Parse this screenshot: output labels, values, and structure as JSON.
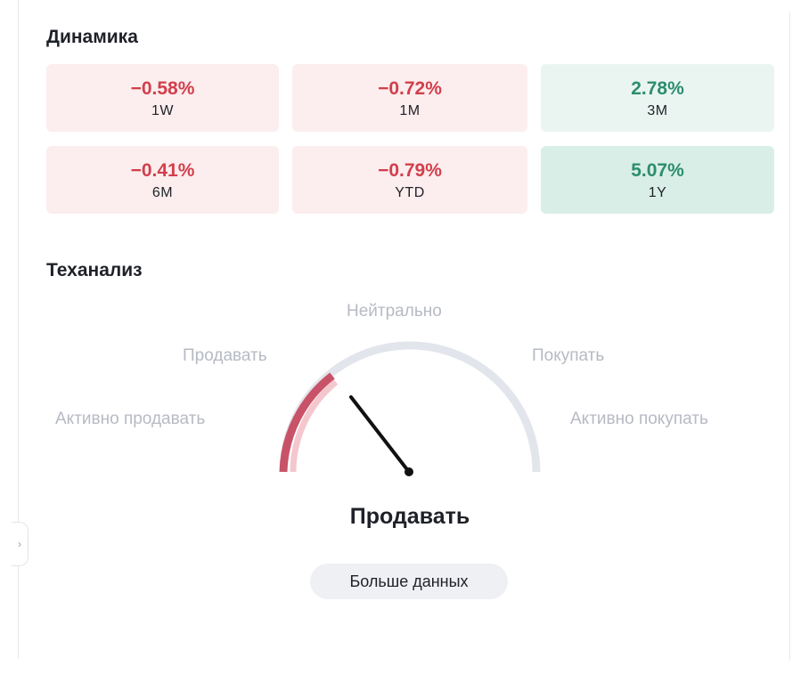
{
  "dynamics": {
    "title": "Динамика",
    "cells": [
      {
        "value": "−0.58%",
        "period": "1W"
      },
      {
        "value": "−0.72%",
        "period": "1M"
      },
      {
        "value": "2.78%",
        "period": "3M"
      },
      {
        "value": "−0.41%",
        "period": "6M"
      },
      {
        "value": "−0.79%",
        "period": "YTD"
      },
      {
        "value": "5.07%",
        "period": "1Y"
      }
    ]
  },
  "technical": {
    "title": "Теханализ",
    "gauge_labels": {
      "strong_sell": "Активно продавать",
      "sell": "Продавать",
      "neutral": "Нейтрально",
      "buy": "Покупать",
      "strong_buy": "Активно покупать"
    },
    "verdict": "Продавать",
    "colors": {
      "neutral_track": "#e3e5ec",
      "sell_fill": "#c85368",
      "sell_fill_light": "#f4c7cf",
      "needle": "#111111"
    }
  },
  "more_button": {
    "label": "Больше данных"
  },
  "collapse_handle": {
    "glyph": "›"
  }
}
